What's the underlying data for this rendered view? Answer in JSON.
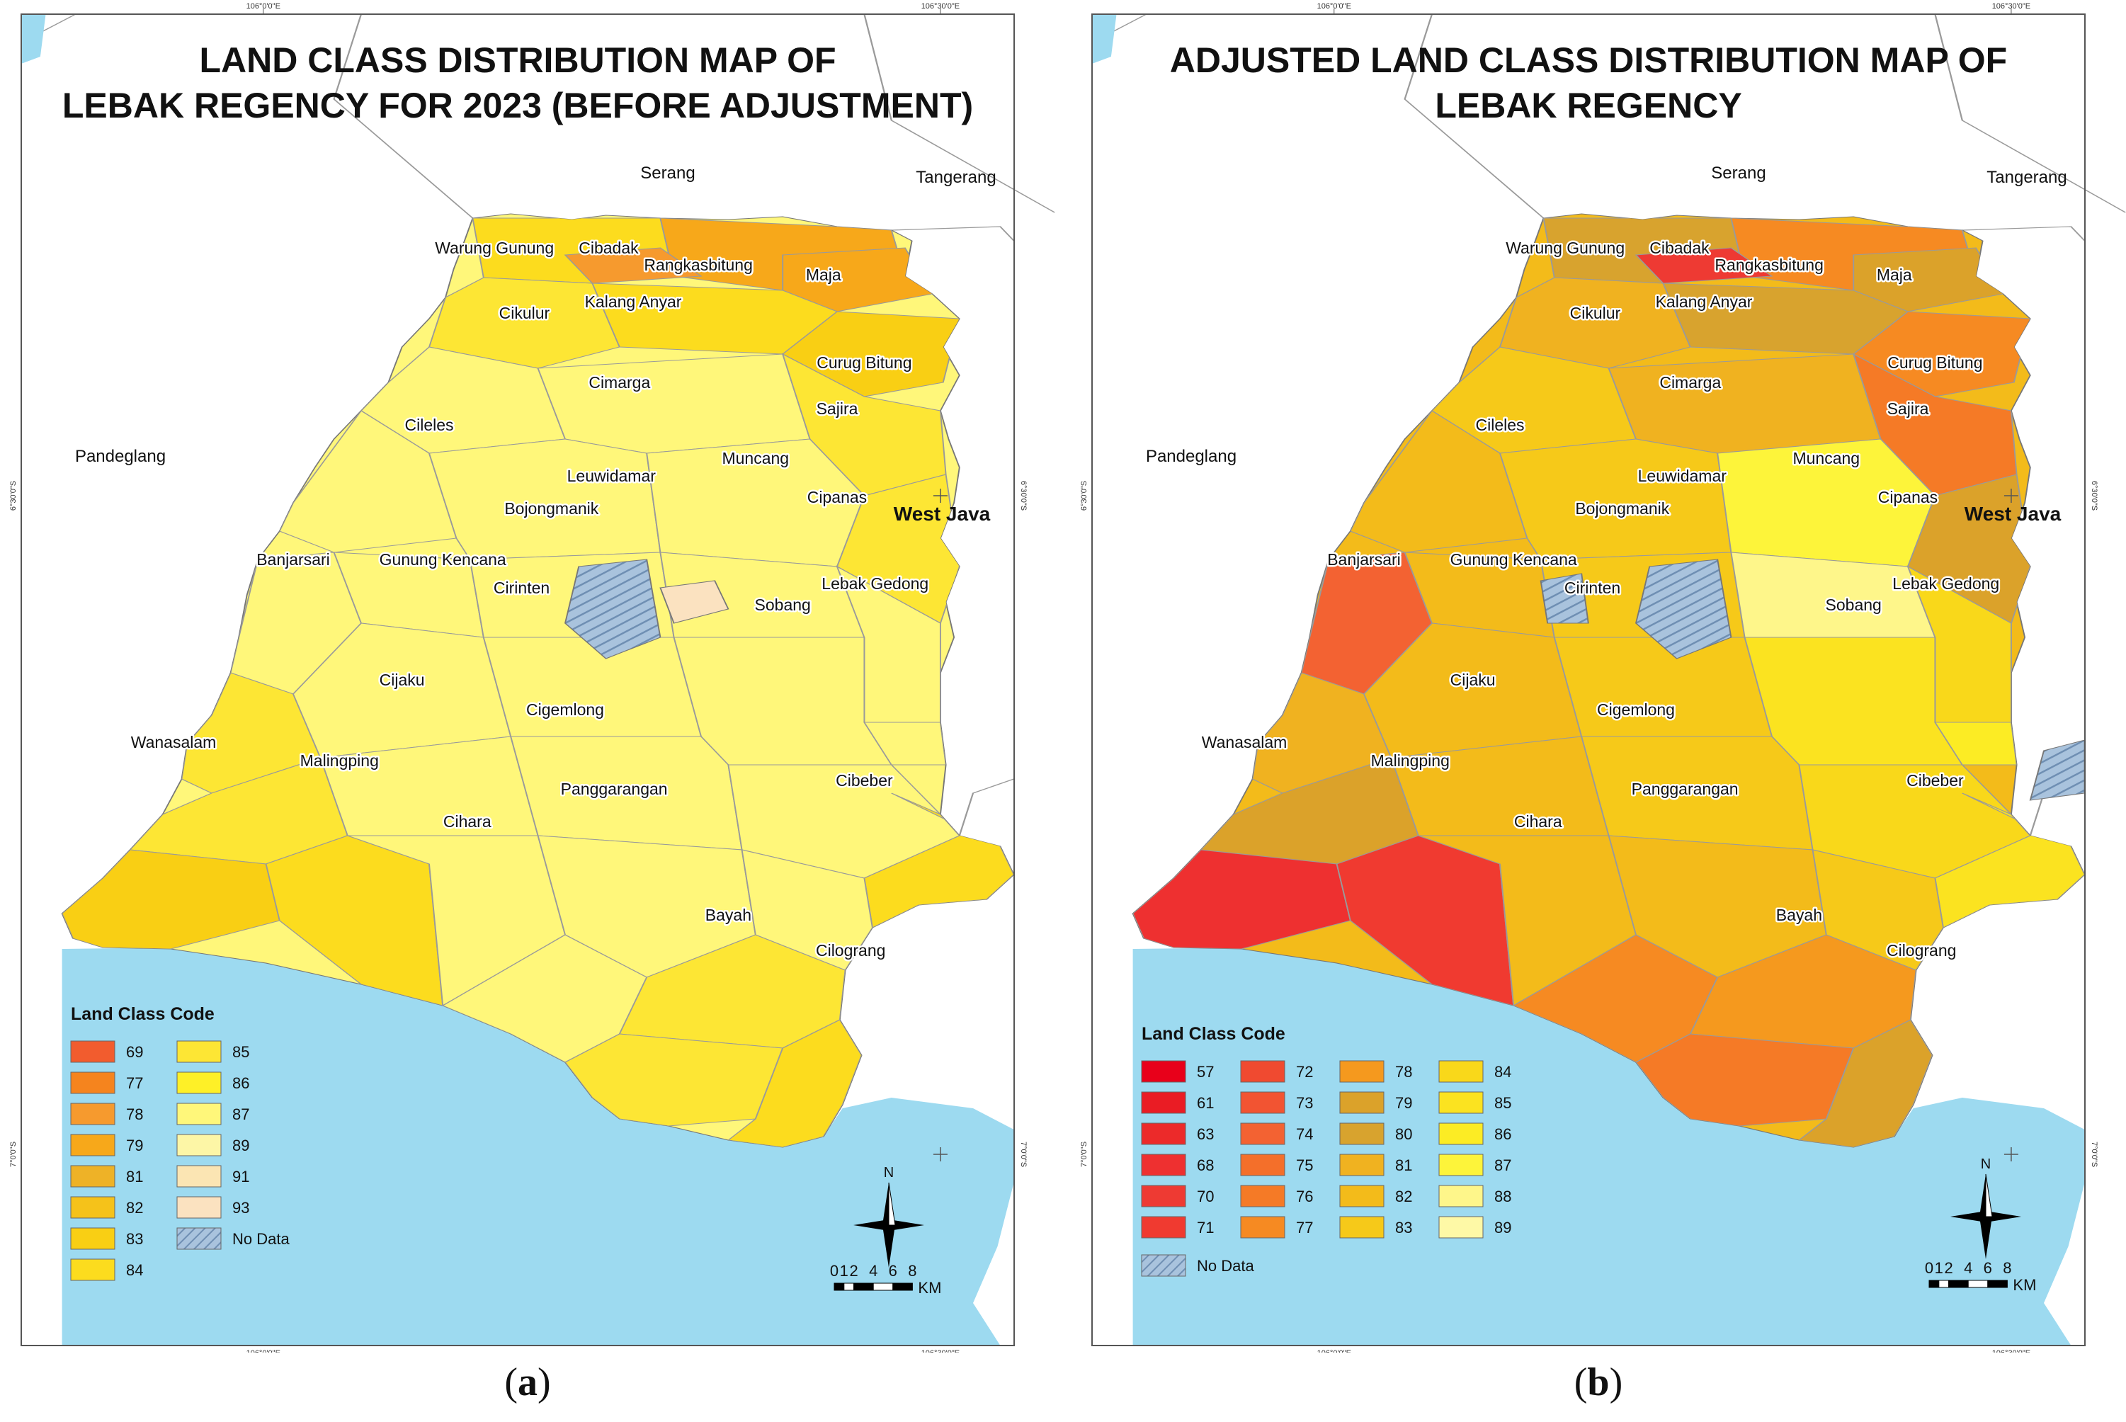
{
  "colors": {
    "sea": "#9ddaf0",
    "land_outside": "#ffffff",
    "frame": "#555555",
    "boundary": "#9a9a9a",
    "no_data_fill": "#a9c3dd",
    "no_data_hatch": "#6f8fb3"
  },
  "panels": [
    {
      "id": "a",
      "caption": "a",
      "title_line1": "LAND CLASS DISTRIBUTION MAP OF",
      "title_line2": "LEBAK REGENCY FOR 2023 (BEFORE ADJUSTMENT)",
      "grid_labels": {
        "top_left": "106°0'0\"E",
        "top_right": "106°30'0\"E",
        "bottom_left": "106°0'0\"E",
        "bottom_right": "106°30'0\"E",
        "left_upper": "6°30'0\"S",
        "left_lower": "7°0'0\"S",
        "right_upper": "6°30'0\"S",
        "right_lower": "7°0'0\"S"
      },
      "outside_regions": [
        "Serang",
        "Tangerang",
        "Pandeglang",
        "West Java"
      ],
      "districts": [
        "Warung Gunung",
        "Cibadak",
        "Rangkasbitung",
        "Maja",
        "Kalang Anyar",
        "Cikulur",
        "Curug Bitung",
        "Cimarga",
        "Sajira",
        "Cileles",
        "Muncang",
        "Cipanas",
        "Leuwidamar",
        "Bojongmanik",
        "Banjarsari",
        "Gunung Kencana",
        "Lebak Gedong",
        "Cirinten",
        "Sobang",
        "Cijaku",
        "Cigemlong",
        "Wanasalam",
        "Malingping",
        "Cibeber",
        "Panggarangan",
        "Cihara",
        "Bayah",
        "Cilograng"
      ],
      "dominant_class": "87",
      "legend": {
        "title": "Land Class Code",
        "items": [
          {
            "code": "69",
            "color": "#f25c2e"
          },
          {
            "code": "77",
            "color": "#f5841e"
          },
          {
            "code": "78",
            "color": "#f69a2e"
          },
          {
            "code": "79",
            "color": "#f7a81a"
          },
          {
            "code": "81",
            "color": "#eeb227"
          },
          {
            "code": "82",
            "color": "#f5c21a"
          },
          {
            "code": "83",
            "color": "#f9cf14"
          },
          {
            "code": "84",
            "color": "#fcdc1e"
          },
          {
            "code": "85",
            "color": "#fde634"
          },
          {
            "code": "86",
            "color": "#fef027"
          },
          {
            "code": "87",
            "color": "#fff77a"
          },
          {
            "code": "89",
            "color": "#fdf6a6"
          },
          {
            "code": "91",
            "color": "#fbe5b3"
          },
          {
            "code": "93",
            "color": "#fbe2c0"
          }
        ],
        "no_data_label": "No Data"
      },
      "north_label": "N",
      "scale_ticks": [
        "0",
        "1",
        "2",
        "4",
        "6",
        "8"
      ],
      "scale_unit": "KM"
    },
    {
      "id": "b",
      "caption": "b",
      "title_line1": "ADJUSTED LAND CLASS DISTRIBUTION MAP OF",
      "title_line2": "LEBAK REGENCY",
      "grid_labels": {
        "top_left": "106°0'0\"E",
        "top_right": "106°30'0\"E",
        "bottom_left": "106°0'0\"E",
        "bottom_right": "106°30'0\"E",
        "left_upper": "6°30'0\"S",
        "left_lower": "7°0'0\"S",
        "right_upper": "6°30'0\"S",
        "right_lower": "7°0'0\"S"
      },
      "outside_regions": [
        "Serang",
        "Tangerang",
        "Pandeglang",
        "West Java"
      ],
      "districts": [
        "Warung Gunung",
        "Cibadak",
        "Rangkasbitung",
        "Maja",
        "Kalang Anyar",
        "Cikulur",
        "Curug Bitung",
        "Cimarga",
        "Sajira",
        "Cileles",
        "Muncang",
        "Cipanas",
        "Leuwidamar",
        "Bojongmanik",
        "Banjarsari",
        "Gunung Kencana",
        "Lebak Gedong",
        "Cirinten",
        "Sobang",
        "Cijaku",
        "Cigemlong",
        "Wanasalam",
        "Malingping",
        "Cibeber",
        "Panggarangan",
        "Cihara",
        "Bayah",
        "Cilograng"
      ],
      "dominant_class": "82",
      "legend": {
        "title": "Land Class Code",
        "items": [
          {
            "code": "57",
            "color": "#e8001a"
          },
          {
            "code": "61",
            "color": "#ea1c24"
          },
          {
            "code": "63",
            "color": "#ec2a2a"
          },
          {
            "code": "68",
            "color": "#ee3030"
          },
          {
            "code": "70",
            "color": "#ee3a33"
          },
          {
            "code": "71",
            "color": "#f03a30"
          },
          {
            "code": "72",
            "color": "#f04a30"
          },
          {
            "code": "73",
            "color": "#f25432"
          },
          {
            "code": "74",
            "color": "#f36232"
          },
          {
            "code": "75",
            "color": "#f46f2a"
          },
          {
            "code": "76",
            "color": "#f57a26"
          },
          {
            "code": "77",
            "color": "#f68a22"
          },
          {
            "code": "78",
            "color": "#f5991e"
          },
          {
            "code": "79",
            "color": "#dba22a"
          },
          {
            "code": "80",
            "color": "#d8a32e"
          },
          {
            "code": "81",
            "color": "#f0b220"
          },
          {
            "code": "82",
            "color": "#f3bb1a"
          },
          {
            "code": "83",
            "color": "#f6c919"
          },
          {
            "code": "84",
            "color": "#f9d81a"
          },
          {
            "code": "85",
            "color": "#fbe320"
          },
          {
            "code": "86",
            "color": "#fcec24"
          },
          {
            "code": "87",
            "color": "#fdf43a"
          },
          {
            "code": "88",
            "color": "#fef68a"
          },
          {
            "code": "89",
            "color": "#fef9a6"
          }
        ],
        "no_data_label": "No Data"
      },
      "north_label": "N",
      "scale_ticks": [
        "0",
        "1",
        "2",
        "4",
        "6",
        "8"
      ],
      "scale_unit": "KM"
    }
  ]
}
